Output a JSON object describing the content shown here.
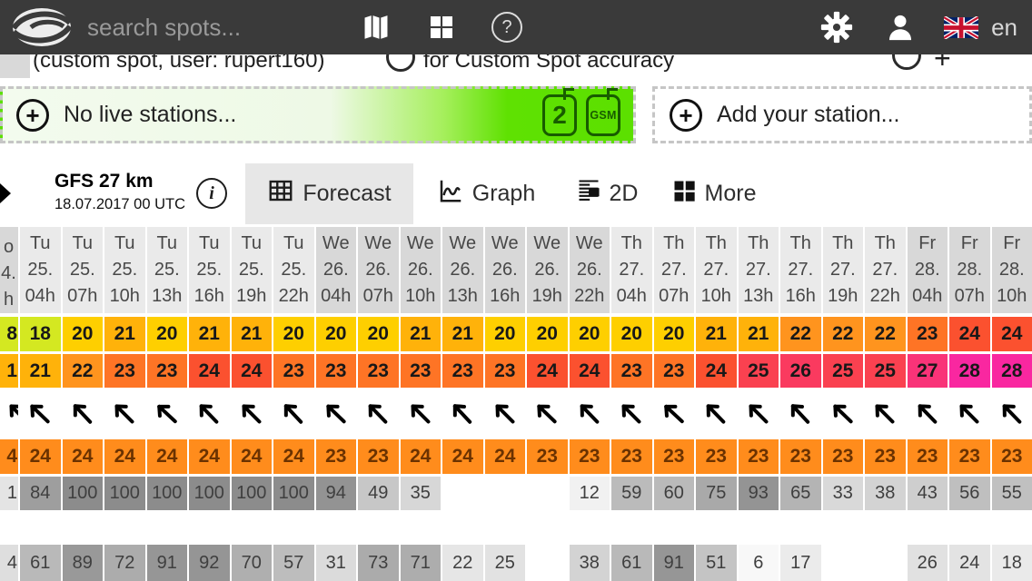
{
  "navbar": {
    "search_placeholder": "search spots...",
    "language": "en"
  },
  "subheader": {
    "left_text": "(custom spot, user: rupert160)",
    "right_text": "for Custom Spot accuracy"
  },
  "station_bar": {
    "no_live_label": "No live stations...",
    "badge_count": "2",
    "badge_gsm": "GSM",
    "add_label": "Add your station..."
  },
  "model_bar": {
    "model_name": "GFS 27 km",
    "model_run": "18.07.2017 00 UTC",
    "tabs": [
      {
        "label": "Forecast",
        "active": true
      },
      {
        "label": "Graph",
        "active": false
      },
      {
        "label": "2D",
        "active": false
      },
      {
        "label": "More",
        "active": false
      }
    ]
  },
  "colors": {
    "navbar_bg": "#3a3a3a",
    "accent_green": "#5ce000",
    "badge_green": "#185c00",
    "orange_cell": "#ff8c1c",
    "temp_scale": {
      "18": "#d4e821",
      "20": "#fecf00",
      "21": "#ffb20a",
      "22": "#ff941e",
      "23": "#fe7425",
      "24": "#fb512f",
      "25": "#fa4150",
      "26": "#fa3a5f",
      "27": "#f93378",
      "28": "#f927a0"
    }
  },
  "forecast_table": {
    "partial_column": {
      "day": "o",
      "date": "4.",
      "hour": "h",
      "temp1": "8",
      "temp2": "1",
      "orange": "4",
      "gray1": "1",
      "gray2": "4"
    },
    "columns": [
      {
        "day": "Tu",
        "date": "25.",
        "hour": "04h"
      },
      {
        "day": "Tu",
        "date": "25.",
        "hour": "07h"
      },
      {
        "day": "Tu",
        "date": "25.",
        "hour": "10h"
      },
      {
        "day": "Tu",
        "date": "25.",
        "hour": "13h"
      },
      {
        "day": "Tu",
        "date": "25.",
        "hour": "16h"
      },
      {
        "day": "Tu",
        "date": "25.",
        "hour": "19h"
      },
      {
        "day": "Tu",
        "date": "25.",
        "hour": "22h"
      },
      {
        "day": "We",
        "date": "26.",
        "hour": "04h"
      },
      {
        "day": "We",
        "date": "26.",
        "hour": "07h"
      },
      {
        "day": "We",
        "date": "26.",
        "hour": "10h"
      },
      {
        "day": "We",
        "date": "26.",
        "hour": "13h"
      },
      {
        "day": "We",
        "date": "26.",
        "hour": "16h"
      },
      {
        "day": "We",
        "date": "26.",
        "hour": "19h"
      },
      {
        "day": "We",
        "date": "26.",
        "hour": "22h"
      },
      {
        "day": "Th",
        "date": "27.",
        "hour": "04h"
      },
      {
        "day": "Th",
        "date": "27.",
        "hour": "07h"
      },
      {
        "day": "Th",
        "date": "27.",
        "hour": "10h"
      },
      {
        "day": "Th",
        "date": "27.",
        "hour": "13h"
      },
      {
        "day": "Th",
        "date": "27.",
        "hour": "16h"
      },
      {
        "day": "Th",
        "date": "27.",
        "hour": "19h"
      },
      {
        "day": "Th",
        "date": "27.",
        "hour": "22h"
      },
      {
        "day": "Fr",
        "date": "28.",
        "hour": "04h"
      },
      {
        "day": "Fr",
        "date": "28.",
        "hour": "07h"
      },
      {
        "day": "Fr",
        "date": "28.",
        "hour": "10h"
      }
    ],
    "rows": {
      "temp1": [
        18,
        20,
        21,
        20,
        21,
        21,
        20,
        20,
        20,
        21,
        21,
        20,
        20,
        20,
        20,
        20,
        21,
        21,
        22,
        22,
        22,
        23,
        24,
        24
      ],
      "temp2": [
        21,
        22,
        23,
        23,
        24,
        24,
        23,
        23,
        23,
        23,
        23,
        23,
        24,
        24,
        23,
        23,
        24,
        25,
        26,
        25,
        25,
        27,
        28,
        28
      ],
      "arrows_deg": [
        -46,
        -43,
        -45,
        -47,
        -44,
        -45,
        -43,
        -46,
        -44,
        -45,
        -43,
        -45,
        -46,
        -44,
        -45,
        -47,
        -44,
        -45,
        -43,
        -46,
        -45,
        -44,
        -45,
        -44
      ],
      "orange": [
        24,
        24,
        24,
        24,
        24,
        24,
        24,
        23,
        23,
        24,
        24,
        24,
        23,
        23,
        23,
        23,
        23,
        23,
        23,
        23,
        23,
        23,
        23,
        23
      ],
      "gray1": [
        84,
        100,
        100,
        100,
        100,
        100,
        100,
        94,
        49,
        35,
        "",
        "",
        "",
        12,
        59,
        60,
        75,
        93,
        65,
        33,
        38,
        43,
        56,
        55
      ],
      "gray2": [
        61,
        89,
        72,
        91,
        92,
        70,
        57,
        31,
        73,
        71,
        22,
        25,
        "",
        38,
        61,
        91,
        51,
        6,
        17,
        "",
        "",
        26,
        24,
        18
      ]
    }
  }
}
